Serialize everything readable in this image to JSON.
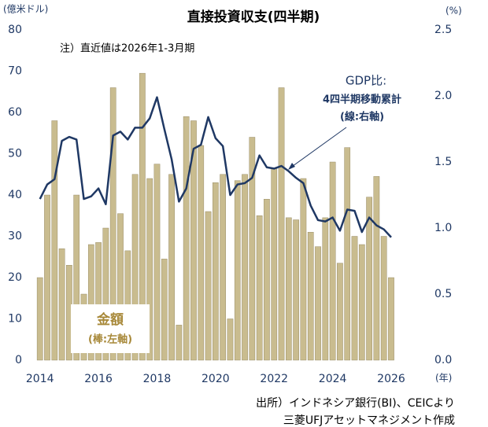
{
  "chart_data": {
    "type": "bar_line",
    "title": "直接投資収支(四半期)",
    "ylabel": "(億米ドル)",
    "y2label": "(%)",
    "xlabel": "(年)",
    "note": "注）直近値は2026年1-3月期",
    "x": [
      2014,
      2014.25,
      2014.5,
      2014.75,
      2015,
      2015.25,
      2015.5,
      2015.75,
      2016,
      2016.25,
      2016.5,
      2016.75,
      2017,
      2017.25,
      2017.5,
      2017.75,
      2018,
      2018.25,
      2018.5,
      2018.75,
      2019,
      2019.25,
      2019.5,
      2019.75,
      2020,
      2020.25,
      2020.5,
      2020.75,
      2021,
      2021.25,
      2021.5,
      2021.75,
      2022,
      2022.25,
      2022.5,
      2022.75,
      2023,
      2023.25,
      2023.5,
      2023.75,
      2024,
      2024.25,
      2024.5,
      2024.75,
      2025,
      2025.25,
      2025.5,
      2025.75,
      2026
    ],
    "series": [
      {
        "name": "金額",
        "sublabel": "(棒:左軸)",
        "color": "#c9bc8f",
        "values": [
          20,
          40,
          58,
          27,
          23,
          40,
          16,
          28,
          28.5,
          32,
          66,
          35.5,
          26.5,
          45,
          69.5,
          44,
          47.5,
          24.5,
          45,
          8.5,
          59,
          58,
          52,
          36,
          43,
          45,
          10,
          43.5,
          45,
          54,
          35,
          39,
          46.5,
          66,
          34.5,
          34,
          44,
          31,
          27.5,
          34.5,
          48,
          23.5,
          51.5,
          30,
          28,
          39.5,
          44.5,
          30,
          20
        ]
      },
      {
        "name": "GDP比:",
        "sublabel": [
          "4四半期移動累計",
          "(線:右軸)"
        ],
        "color": "#1f3864",
        "axis": "y2",
        "values": [
          1.22,
          1.33,
          1.37,
          1.66,
          1.69,
          1.67,
          1.22,
          1.24,
          1.3,
          1.18,
          1.7,
          1.73,
          1.67,
          1.76,
          1.76,
          1.83,
          1.99,
          1.75,
          1.52,
          1.2,
          1.3,
          1.6,
          1.63,
          1.84,
          1.68,
          1.62,
          1.25,
          1.33,
          1.34,
          1.38,
          1.55,
          1.46,
          1.45,
          1.47,
          1.43,
          1.38,
          1.34,
          1.17,
          1.06,
          1.05,
          1.08,
          0.98,
          1.14,
          1.13,
          0.97,
          1.08,
          1.02,
          0.99,
          0.93
        ]
      }
    ],
    "xlim": [
      2013.9,
      2026.35
    ],
    "xticks": [
      2014,
      2016,
      2018,
      2020,
      2022,
      2024,
      2026
    ],
    "ylim": [
      0,
      80
    ],
    "yticks": [
      0,
      10,
      20,
      30,
      40,
      50,
      60,
      70,
      80
    ],
    "y2lim": [
      0,
      2.5
    ],
    "y2ticks": [
      {
        "value": 0,
        "label": "0.0"
      },
      0.5,
      {
        "value": 1,
        "label": "1.0"
      },
      1.5,
      {
        "value": 2,
        "label": "2.0"
      },
      2.5
    ],
    "source": [
      "出所）インドネシア銀行(BI)、CEICより",
      "三菱UFJアセットマネジメント作成"
    ]
  }
}
